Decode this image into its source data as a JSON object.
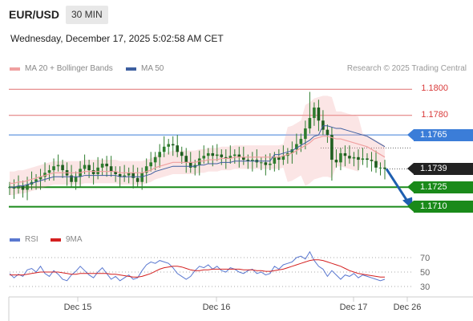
{
  "header": {
    "symbol": "EUR/USD",
    "timeframe": "30 MIN",
    "datetime": "Wednesday, December 17, 2025 5:02:58 AM CET"
  },
  "legend": {
    "ma20_label": "MA 20 + Bollinger Bands",
    "ma50_label": "MA 50",
    "rsi_label": "RSI",
    "ma9_label": "9MA",
    "credit": "Research © 2025 Trading Central"
  },
  "colors": {
    "resistance": "#e07070",
    "pivot": "#3b7dd8",
    "support": "#1a8a1a",
    "last": "#222222",
    "ma20": "#f0a0a0",
    "ma50": "#3d5fa0",
    "candle": "#2e7d2e",
    "rsi": "#5a78d0",
    "rsi_ma": "#d42020",
    "arrow": "#1e5fb0"
  },
  "chart_data": [
    {
      "type": "candlestick",
      "title": "",
      "x_ticks": [
        "Dec 15",
        "Dec 16",
        "Dec 17",
        "Dec 26"
      ],
      "ylim": [
        1.1695,
        1.181
      ],
      "levels": [
        {
          "label": "1.1800",
          "value": 1.18,
          "kind": "resistance"
        },
        {
          "label": "1.1780",
          "value": 1.178,
          "kind": "resistance"
        },
        {
          "label": "1.1765",
          "value": 1.1765,
          "kind": "pivot"
        },
        {
          "label": "1.1739",
          "value": 1.1739,
          "kind": "last"
        },
        {
          "label": "1.1725",
          "value": 1.1725,
          "kind": "support"
        },
        {
          "label": "1.1710",
          "value": 1.171,
          "kind": "support"
        }
      ],
      "close": [
        1.1725,
        1.1724,
        1.1726,
        1.1723,
        1.1727,
        1.1729,
        1.1731,
        1.1733,
        1.1736,
        1.1738,
        1.1741,
        1.1742,
        1.1738,
        1.1734,
        1.1729,
        1.1733,
        1.1739,
        1.1742,
        1.1738,
        1.1735,
        1.174,
        1.1743,
        1.1741,
        1.1737,
        1.1735,
        1.1733,
        1.1734,
        1.1736,
        1.1732,
        1.1729,
        1.1736,
        1.1741,
        1.1744,
        1.1748,
        1.1752,
        1.1756,
        1.1758,
        1.1757,
        1.1752,
        1.1749,
        1.1744,
        1.174,
        1.1742,
        1.1747,
        1.1749,
        1.1751,
        1.1749,
        1.175,
        1.1748,
        1.1747,
        1.1749,
        1.175,
        1.1748,
        1.1746,
        1.1745,
        1.1746,
        1.1744,
        1.1744,
        1.1742,
        1.1743,
        1.1748,
        1.1746,
        1.1749,
        1.1751,
        1.1754,
        1.1758,
        1.1762,
        1.177,
        1.1778,
        1.1786,
        1.1776,
        1.1769,
        1.1765,
        1.1746,
        1.1744,
        1.1751,
        1.1749,
        1.1747,
        1.1748,
        1.1746,
        1.1747,
        1.1746,
        1.1745,
        1.174,
        1.174,
        1.1739
      ],
      "ma20": [
        1.1728,
        1.1728,
        1.1729,
        1.1729,
        1.173,
        1.1731,
        1.1732,
        1.1733,
        1.1734,
        1.1735,
        1.1736,
        1.1736,
        1.1736,
        1.1736,
        1.1736,
        1.1736,
        1.1736,
        1.1737,
        1.1737,
        1.1737,
        1.1737,
        1.1737,
        1.1737,
        1.1737,
        1.1737,
        1.1736,
        1.1736,
        1.1736,
        1.1736,
        1.1736,
        1.1736,
        1.1737,
        1.1738,
        1.174,
        1.1741,
        1.1742,
        1.1743,
        1.1744,
        1.1744,
        1.1744,
        1.1744,
        1.1744,
        1.1744,
        1.1745,
        1.1745,
        1.1746,
        1.1746,
        1.1746,
        1.1747,
        1.1747,
        1.1747,
        1.1748,
        1.1748,
        1.1748,
        1.1748,
        1.1748,
        1.1748,
        1.1748,
        1.1748,
        1.1748,
        1.1748,
        1.1748,
        1.1749,
        1.175,
        1.1751,
        1.1753,
        1.1755,
        1.1757,
        1.1759,
        1.1762,
        1.1763,
        1.1764,
        1.1764,
        1.1763,
        1.1762,
        1.1762,
        1.1761,
        1.176,
        1.1759,
        1.1758,
        1.1757,
        1.1756,
        1.1754,
        1.1752,
        1.175,
        1.1748
      ],
      "ma50_end": 1.1755,
      "projection": {
        "from": 1.1739,
        "to": 1.171
      }
    },
    {
      "type": "line",
      "title": "RSI",
      "yticks": [
        70,
        50,
        30
      ],
      "ylim": [
        20,
        80
      ],
      "series": [
        {
          "name": "RSI",
          "values": [
            48,
            42,
            47,
            44,
            53,
            55,
            50,
            58,
            48,
            44,
            52,
            47,
            40,
            38,
            46,
            51,
            58,
            52,
            46,
            42,
            50,
            56,
            48,
            40,
            44,
            38,
            42,
            46,
            40,
            42,
            52,
            60,
            64,
            62,
            66,
            64,
            62,
            56,
            48,
            44,
            40,
            44,
            52,
            58,
            56,
            60,
            54,
            58,
            52,
            50,
            56,
            54,
            50,
            48,
            52,
            54,
            48,
            50,
            46,
            48,
            58,
            54,
            60,
            62,
            64,
            70,
            72,
            68,
            78,
            66,
            58,
            54,
            44,
            52,
            46,
            40,
            46,
            44,
            48,
            42,
            46,
            44,
            42,
            40,
            38,
            40
          ]
        },
        {
          "name": "9MA",
          "values": [
            46,
            46,
            46,
            46,
            47,
            48,
            49,
            50,
            50,
            50,
            50,
            50,
            49,
            48,
            47,
            47,
            48,
            48,
            48,
            48,
            48,
            48,
            48,
            47,
            47,
            46,
            45,
            44,
            43,
            43,
            44,
            46,
            48,
            51,
            54,
            56,
            57,
            58,
            58,
            57,
            55,
            53,
            52,
            52,
            53,
            53,
            54,
            54,
            54,
            54,
            54,
            54,
            54,
            53,
            53,
            53,
            52,
            52,
            51,
            51,
            52,
            53,
            54,
            56,
            58,
            60,
            62,
            64,
            66,
            67,
            67,
            66,
            64,
            62,
            60,
            58,
            55,
            52,
            50,
            48,
            47,
            46,
            45,
            44,
            43,
            43
          ]
        }
      ]
    }
  ]
}
